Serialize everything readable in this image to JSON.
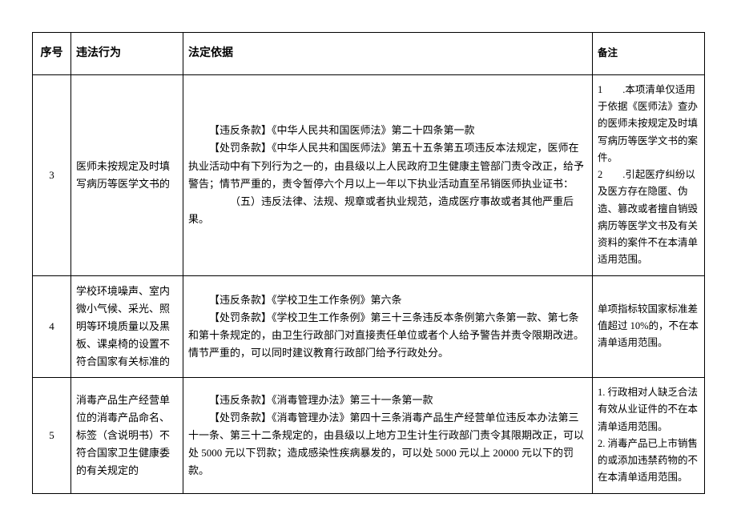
{
  "table": {
    "columns": {
      "seq": "序号",
      "behavior": "违法行为",
      "basis": "法定依据",
      "remark": "备注"
    },
    "rows": [
      {
        "seq": "3",
        "behavior": "医师未按规定及时填写病历等医学文书的",
        "basis_lines": [
          {
            "cls": "indent",
            "text": "【违反条款】《中华人民共和国医师法》第二十四条第一款"
          },
          {
            "cls": "indent",
            "text": "【处罚条款】《中华人民共和国医师法》第五十五条第五项违反本法规定，医师在执业活动中有下列行为之一的，由县级以上人民政府卫生健康主管部门责令改正，给予警告；情节严重的，责令暂停六个月以上一年以下执业活动直至吊销医师执业证书："
          },
          {
            "cls": "indent2",
            "text": "（五）违反法律、法规、规章或者执业规范，造成医疗事故或者其他严重后果。"
          }
        ],
        "remark_lines": [
          "1　　.本项清单仅适用于依据《医师法》查办的医师未按规定及时填写病历等医学文书的案件。",
          "2　　.引起医疗纠纷以及医方存在隐匿、伪造、篡改或者擅自销毁病历等医学文书及有关资料的案件不在本清单适用范围。"
        ]
      },
      {
        "seq": "4",
        "behavior": "学校环境噪声、室内微小气候、采光、照明等环境质量以及黑板、课桌椅的设置不符合国家有关标准的",
        "basis_lines": [
          {
            "cls": "indent",
            "text": "【违反条款】《学校卫生工作条例》第六条"
          },
          {
            "cls": "indent",
            "text": "【处罚条款】《学校卫生工作条例》第三十三条违反本条例第六条第一款、第七条和第十条规定的，由卫生行政部门对直接责任单位或者个人给予警告并责令限期改进。情节严重的，可以同时建议教育行政部门给予行政处分。"
          }
        ],
        "remark_lines": [
          "单项指标较国家标准差值超过 10%的，不在本清单适用范围。"
        ]
      },
      {
        "seq": "5",
        "behavior": "消毒产品生产经营单位的消毒产品命名、标签（含说明书）不符合国家卫生健康委的有关规定的",
        "basis_lines": [
          {
            "cls": "indent",
            "text": "【违反条款】《消毒管理办法》第三十一条第一款"
          },
          {
            "cls": "indent",
            "text": "【处罚条款】《消毒管理办法》第四十三条消毒产品生产经营单位违反本办法第三十一条、第三十二条规定的，由县级以上地方卫生计生行政部门责令其限期改正，可以处 5000 元以下罚款；造成感染性疾病暴发的，可以处 5000 元以上 20000 元以下的罚款。"
          }
        ],
        "remark_lines": [
          "1. 行政相对人缺乏合法有效从业证件的不在本清单适用范围。",
          "2. 消毒产品已上市销售的或添加违禁药物的不在本清单适用范围。"
        ]
      }
    ]
  }
}
